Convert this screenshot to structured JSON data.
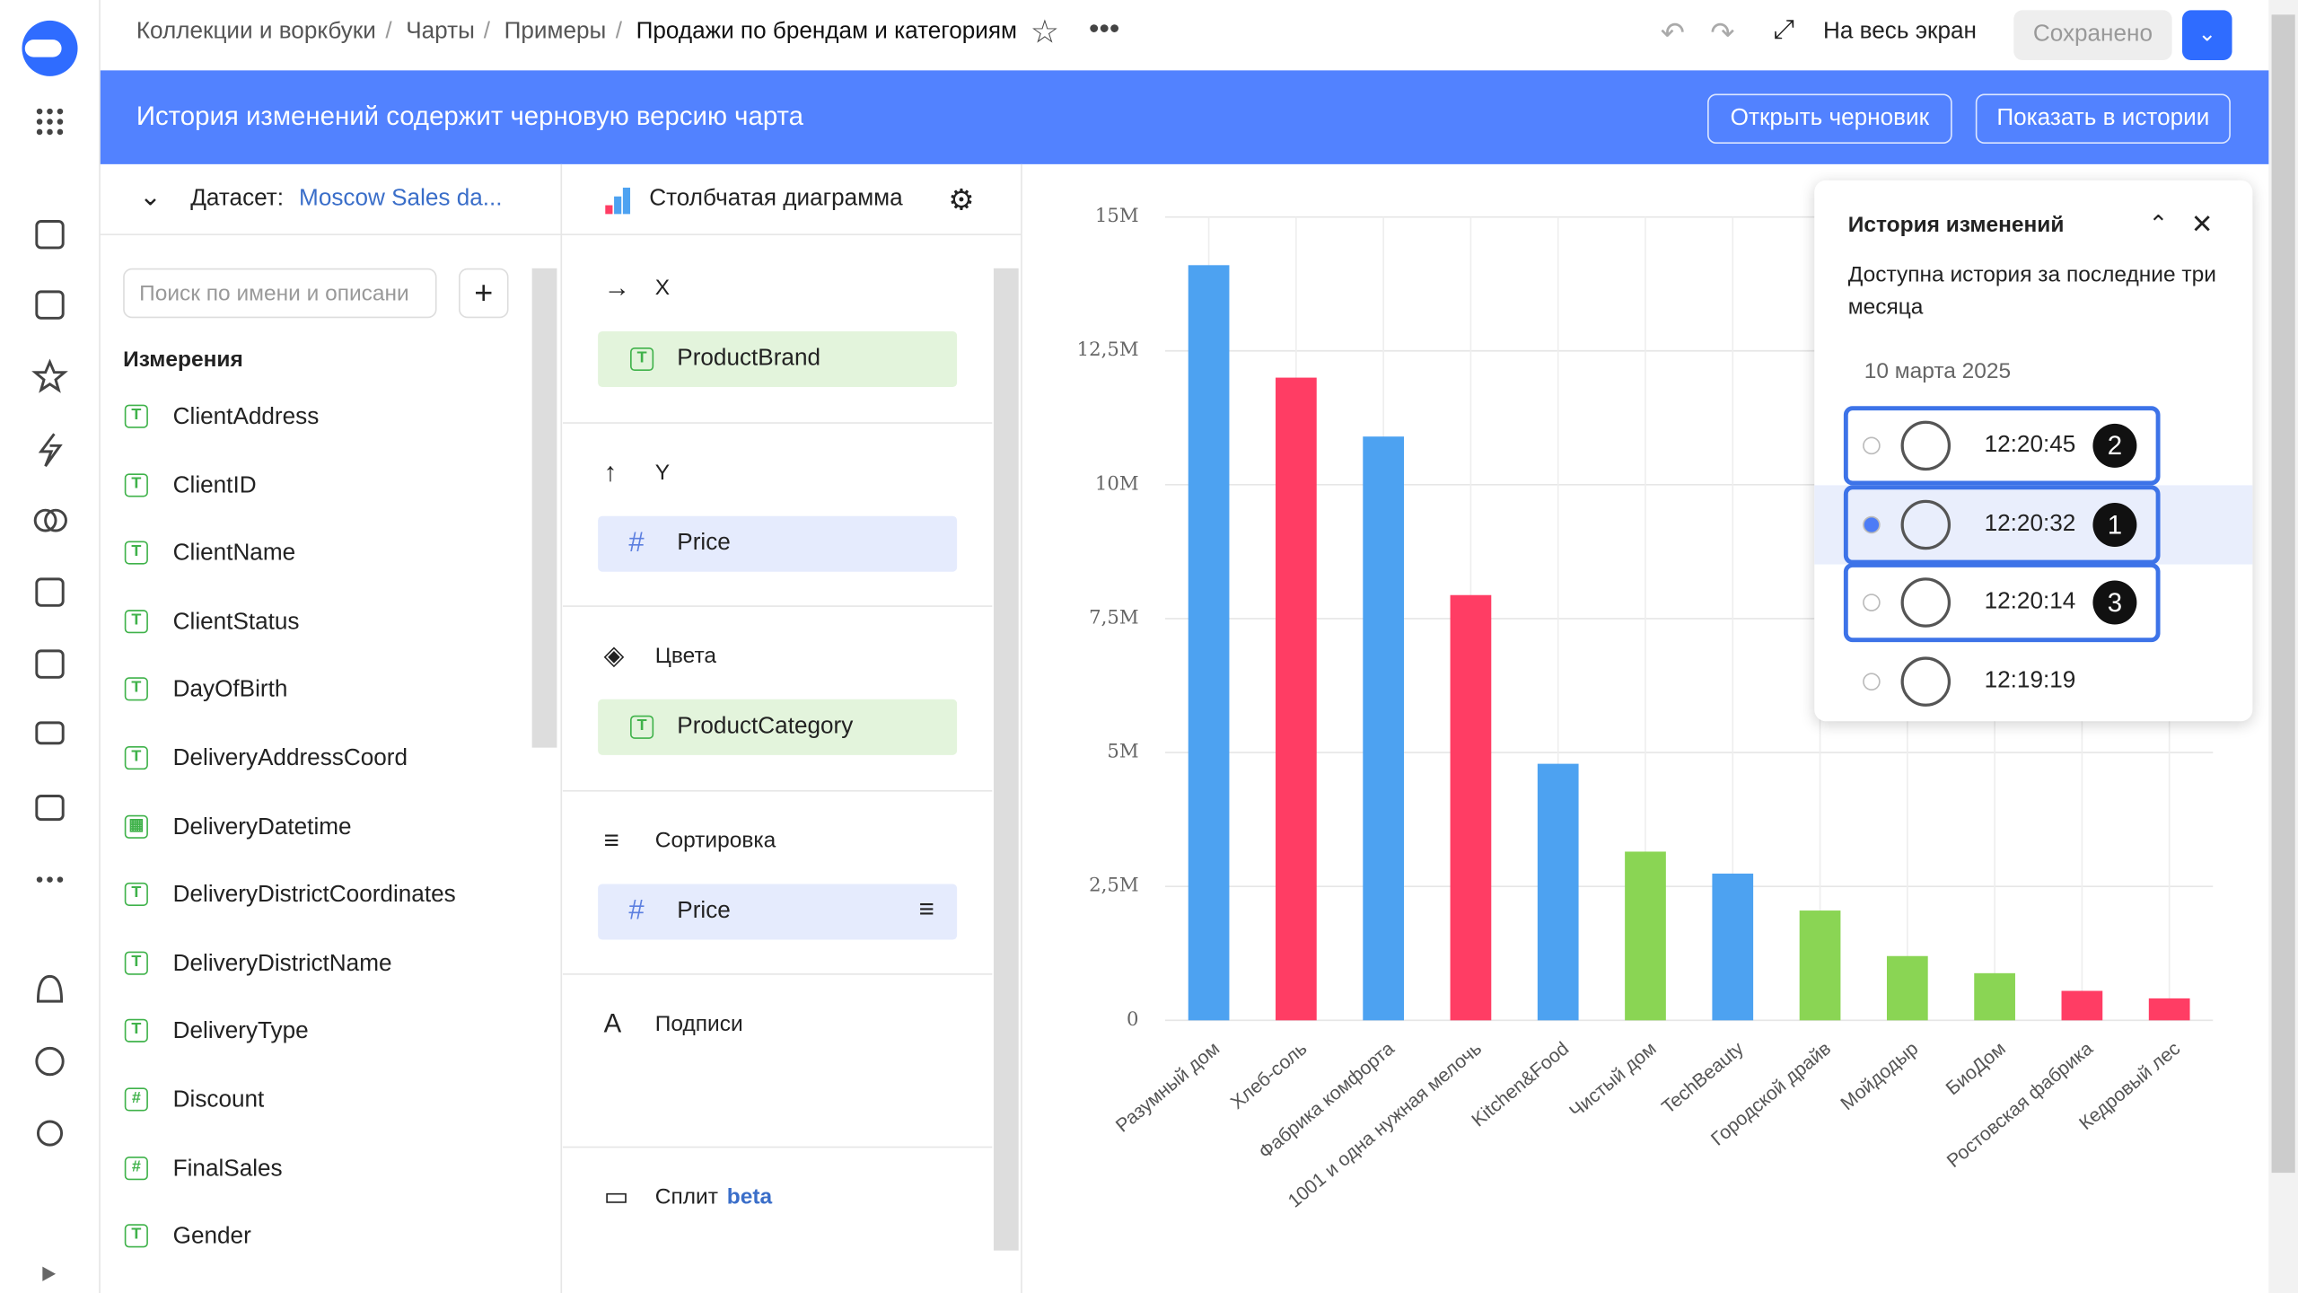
{
  "breadcrumbs": [
    "Коллекции и воркбуки",
    "Чарты",
    "Примеры"
  ],
  "page_title": "Продажи по брендам и категориям",
  "toolbar": {
    "fullscreen": "На весь экран",
    "save": "Сохранено"
  },
  "banner": {
    "text": "История изменений содержит черновую версию чарта",
    "buttons": [
      "Открыть черновик",
      "Показать в истории"
    ]
  },
  "dataset": {
    "label": "Датасет:",
    "name": "Moscow Sales da...",
    "search_placeholder": "Поиск по имени и описани",
    "section": "Измерения",
    "fields": [
      {
        "icon": "T",
        "name": "ClientAddress"
      },
      {
        "icon": "T",
        "name": "ClientID"
      },
      {
        "icon": "T",
        "name": "ClientName"
      },
      {
        "icon": "T",
        "name": "ClientStatus"
      },
      {
        "icon": "T",
        "name": "DayOfBirth"
      },
      {
        "icon": "T",
        "name": "DeliveryAddressCoord"
      },
      {
        "icon": "▦",
        "name": "DeliveryDatetime"
      },
      {
        "icon": "T",
        "name": "DeliveryDistrictCoordinates"
      },
      {
        "icon": "T",
        "name": "DeliveryDistrictName"
      },
      {
        "icon": "T",
        "name": "DeliveryType"
      },
      {
        "icon": "#",
        "name": "Discount"
      },
      {
        "icon": "#",
        "name": "FinalSales"
      },
      {
        "icon": "T",
        "name": "Gender"
      }
    ]
  },
  "chart_type": "Столбчатая диаграмма",
  "sections": [
    {
      "title": "X",
      "fields": [
        {
          "icon": "T",
          "name": "ProductBrand"
        }
      ]
    },
    {
      "title": "Y",
      "fields": [
        {
          "icon": "#",
          "name": "Price"
        }
      ]
    },
    {
      "title": "Цвета",
      "fields": [
        {
          "icon": "T",
          "name": "ProductCategory"
        }
      ]
    },
    {
      "title": "Сортировка",
      "fields": [
        {
          "icon": "#",
          "name": "Price"
        }
      ]
    },
    {
      "title": "Подписи"
    },
    {
      "title": "Сплит",
      "badge": "beta"
    }
  ],
  "history": {
    "title": "История изменений",
    "note": "Доступна история за последние три месяца",
    "date": "10 марта 2025",
    "versions": [
      {
        "time": "12:20:45",
        "badge": "2"
      },
      {
        "time": "12:20:32",
        "badge": "1"
      },
      {
        "time": "12:20:14",
        "badge": "3"
      },
      {
        "time": "12:19:19"
      }
    ]
  },
  "chart": {
    "type": "bar",
    "categories": [
      "Разумный дом",
      "Хлеб-соль",
      "Фабрика комфорта",
      "1001 и одна нужная мелочь",
      "Kitchen&Food",
      "Чистый дом",
      "TechBeauty",
      "Городской драйв",
      "Мойдодыр",
      "БиоДом",
      "Ростовская фабрика",
      "Кедровый лес"
    ],
    "values": [
      14100000,
      12000000,
      10900000,
      7940000,
      4790000,
      3150000,
      2740000,
      2050000,
      1200000,
      880000,
      550000,
      410000
    ],
    "colors": [
      "#4da2f1",
      "#ff3d64",
      "#4da2f1",
      "#ff3d64",
      "#4da2f1",
      "#8ad554",
      "#4da2f1",
      "#8ad554",
      "#8ad554",
      "#8ad554",
      "#ff3d64",
      "#ff3d64"
    ],
    "ylim": [
      0,
      15000000
    ],
    "yticks": [
      0,
      {
        "value": 2500000,
        "label": "2,5M"
      },
      {
        "value": 5000000,
        "label": "5M"
      },
      {
        "value": 7500000,
        "label": "7,5M"
      },
      {
        "value": 10000000,
        "label": "10M"
      },
      {
        "value": 12500000,
        "label": "12,5M"
      },
      {
        "value": 15000000,
        "label": "15M"
      }
    ],
    "grid": true
  }
}
